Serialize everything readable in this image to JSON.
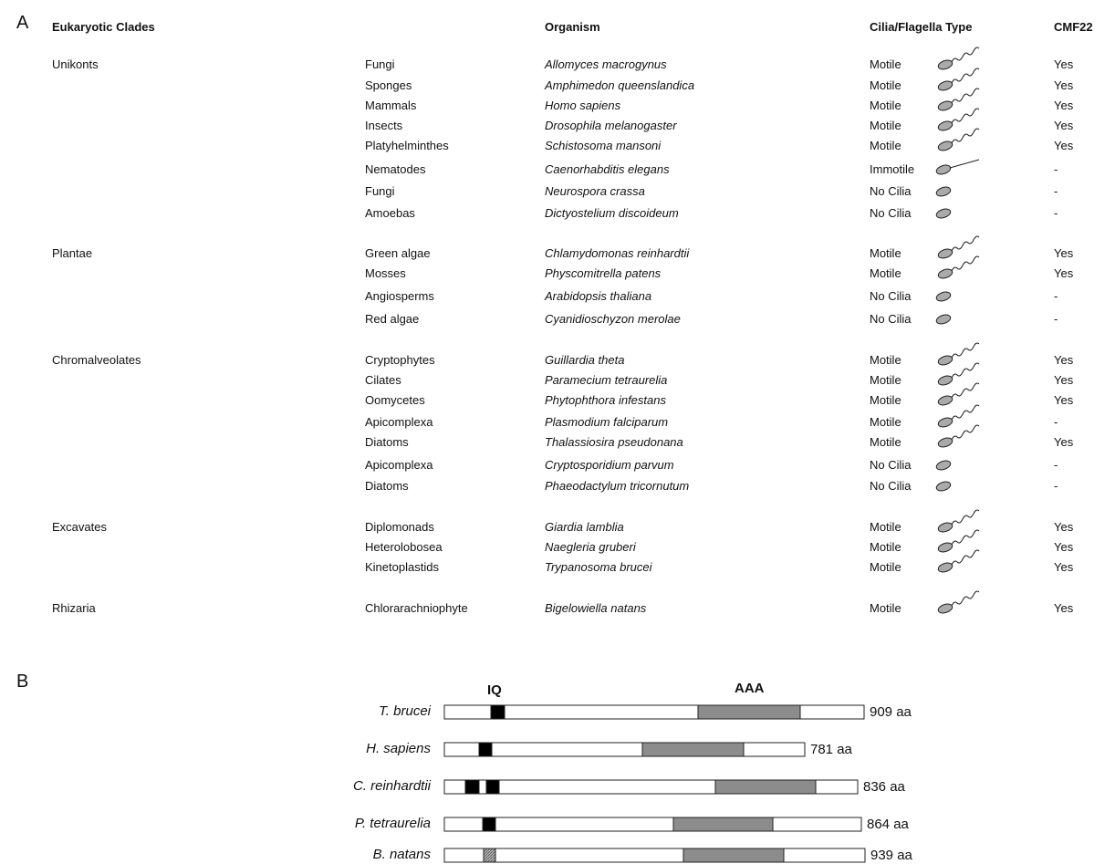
{
  "panel_a": {
    "label": "A",
    "headers": [
      "Eukaryotic Clades",
      "Organism",
      "Cilia/Flagella Type",
      "CMF22"
    ],
    "groups": [
      {
        "clade": "Unikonts",
        "rows": [
          [
            "Fungi",
            "Allomyces macrogynus",
            "Motile",
            "Yes"
          ],
          [
            "Sponges",
            "Amphimedon queenslandica",
            "Motile",
            "Yes"
          ],
          [
            "Mammals",
            "Homo sapiens",
            "Motile",
            "Yes"
          ],
          [
            "Insects",
            "Drosophila melanogaster",
            "Motile",
            "Yes"
          ],
          [
            "Platyhelminthes",
            "Schistosoma mansoni",
            "Motile",
            "Yes"
          ],
          [
            "Nematodes",
            "Caenorhabditis elegans",
            "Immotile",
            "-"
          ],
          [
            "Fungi",
            "Neurospora crassa",
            "No Cilia",
            "-"
          ],
          [
            "Amoebas",
            "Dictyostelium discoideum",
            "No Cilia",
            "-"
          ]
        ]
      },
      {
        "clade": "Plantae",
        "rows": [
          [
            "Green algae",
            "Chlamydomonas reinhardtii",
            "Motile",
            "Yes"
          ],
          [
            "Mosses",
            "Physcomitrella patens",
            "Motile",
            "Yes"
          ],
          [
            "Angiosperms",
            "Arabidopsis thaliana",
            "No Cilia",
            "-"
          ],
          [
            "Red algae",
            "Cyanidioschyzon merolae",
            "No Cilia",
            "-"
          ]
        ]
      },
      {
        "clade": "Chromalveolates",
        "rows": [
          [
            "Cryptophytes",
            "Guillardia theta",
            "Motile",
            "Yes"
          ],
          [
            "Cilates",
            "Paramecium tetraurelia",
            "Motile",
            "Yes"
          ],
          [
            "Oomycetes",
            "Phytophthora infestans",
            "Motile",
            "Yes"
          ],
          [
            "Apicomplexa",
            "Plasmodium falciparum",
            "Motile",
            "-"
          ],
          [
            "Diatoms",
            "Thalassiosira pseudonana",
            "Motile",
            "Yes"
          ],
          [
            "Apicomplexa",
            "Cryptosporidium parvum",
            "No Cilia",
            "-"
          ],
          [
            "Diatoms",
            "Phaeodactylum tricornutum",
            "No Cilia",
            "-"
          ]
        ]
      },
      {
        "clade": "Excavates",
        "rows": [
          [
            "Diplomonads",
            "Giardia lamblia",
            "Motile",
            "Yes"
          ],
          [
            "Heterolobosea",
            "Naegleria gruberi",
            "Motile",
            "Yes"
          ],
          [
            "Kinetoplastids",
            "Trypanosoma brucei",
            "Motile",
            "Yes"
          ]
        ]
      },
      {
        "clade": "Rhizaria",
        "rows": [
          [
            "Chlorarachniophyte",
            "Bigelowiella natans",
            "Motile",
            "Yes"
          ]
        ]
      }
    ]
  },
  "panel_b": {
    "label": "B",
    "domains": [
      "IQ",
      "AAA"
    ],
    "proteins": [
      {
        "species": "T. brucei",
        "length": "909 aa"
      },
      {
        "species": "H. sapiens",
        "length": "781 aa"
      },
      {
        "species": "C. reinhardtii",
        "length": "836 aa"
      },
      {
        "species": "P. tetraurelia",
        "length": "864 aa"
      },
      {
        "species": "B. natans",
        "length": "939 aa"
      }
    ]
  }
}
